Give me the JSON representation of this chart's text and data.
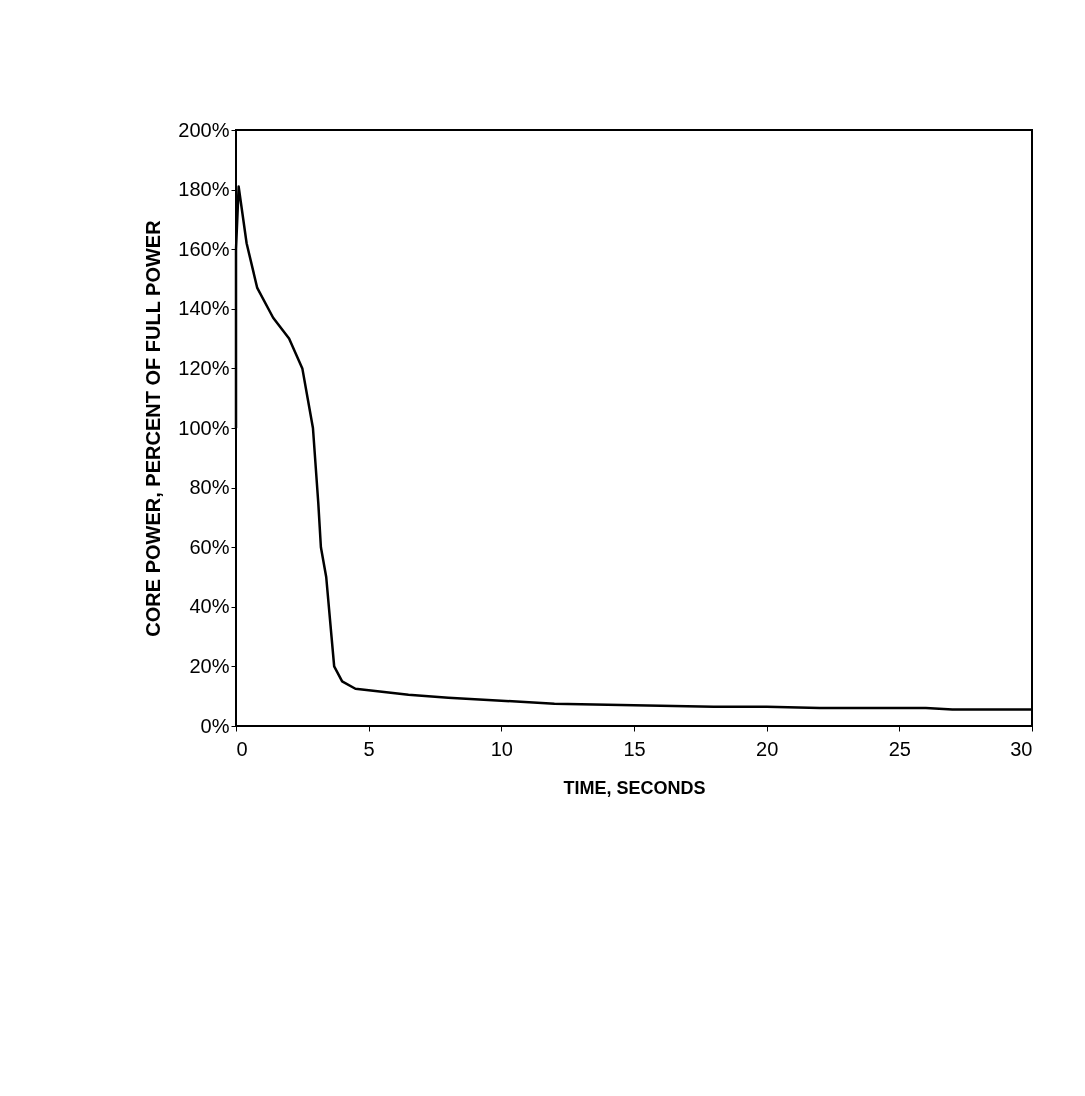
{
  "chart_data": {
    "type": "line",
    "xlabel": "TIME, SECONDS",
    "ylabel": "CORE POWER, PERCENT OF FULL POWER",
    "x": [
      0,
      0,
      0.1,
      0.4,
      0.8,
      1.4,
      2.0,
      2.5,
      2.7,
      2.9,
      3.1,
      3.2,
      3.4,
      3.6,
      3.7,
      4.0,
      4.5,
      5.5,
      6.5,
      8,
      10,
      12,
      15,
      18,
      20,
      22,
      26,
      27,
      30
    ],
    "series": [
      {
        "color": "#000000",
        "values": [
          100,
          160,
          181,
          162,
          147,
          137,
          130,
          120,
          110,
          100,
          75,
          60,
          50,
          30,
          20,
          15,
          12.5,
          11.5,
          10.5,
          9.5,
          8.5,
          7.5,
          7,
          6.5,
          6.5,
          6,
          6,
          5.5,
          5.5
        ]
      }
    ],
    "xlim": [
      0,
      30
    ],
    "xticks": [
      0,
      5,
      10,
      15,
      20,
      25,
      30
    ],
    "ylim": [
      0,
      200
    ],
    "yticks": [
      {
        "value": 0,
        "label": "0%"
      },
      {
        "value": 20,
        "label": "20%"
      },
      {
        "value": 40,
        "label": "40%"
      },
      {
        "value": 60,
        "label": "60%"
      },
      {
        "value": 80,
        "label": "80%"
      },
      {
        "value": 100,
        "label": "100%"
      },
      {
        "value": 120,
        "label": "120%"
      },
      {
        "value": 140,
        "label": "140%"
      },
      {
        "value": 160,
        "label": "160%"
      },
      {
        "value": 180,
        "label": "180%"
      },
      {
        "value": 200,
        "label": "200%"
      }
    ],
    "grid": false,
    "marker": "none",
    "line_style": "solid"
  }
}
